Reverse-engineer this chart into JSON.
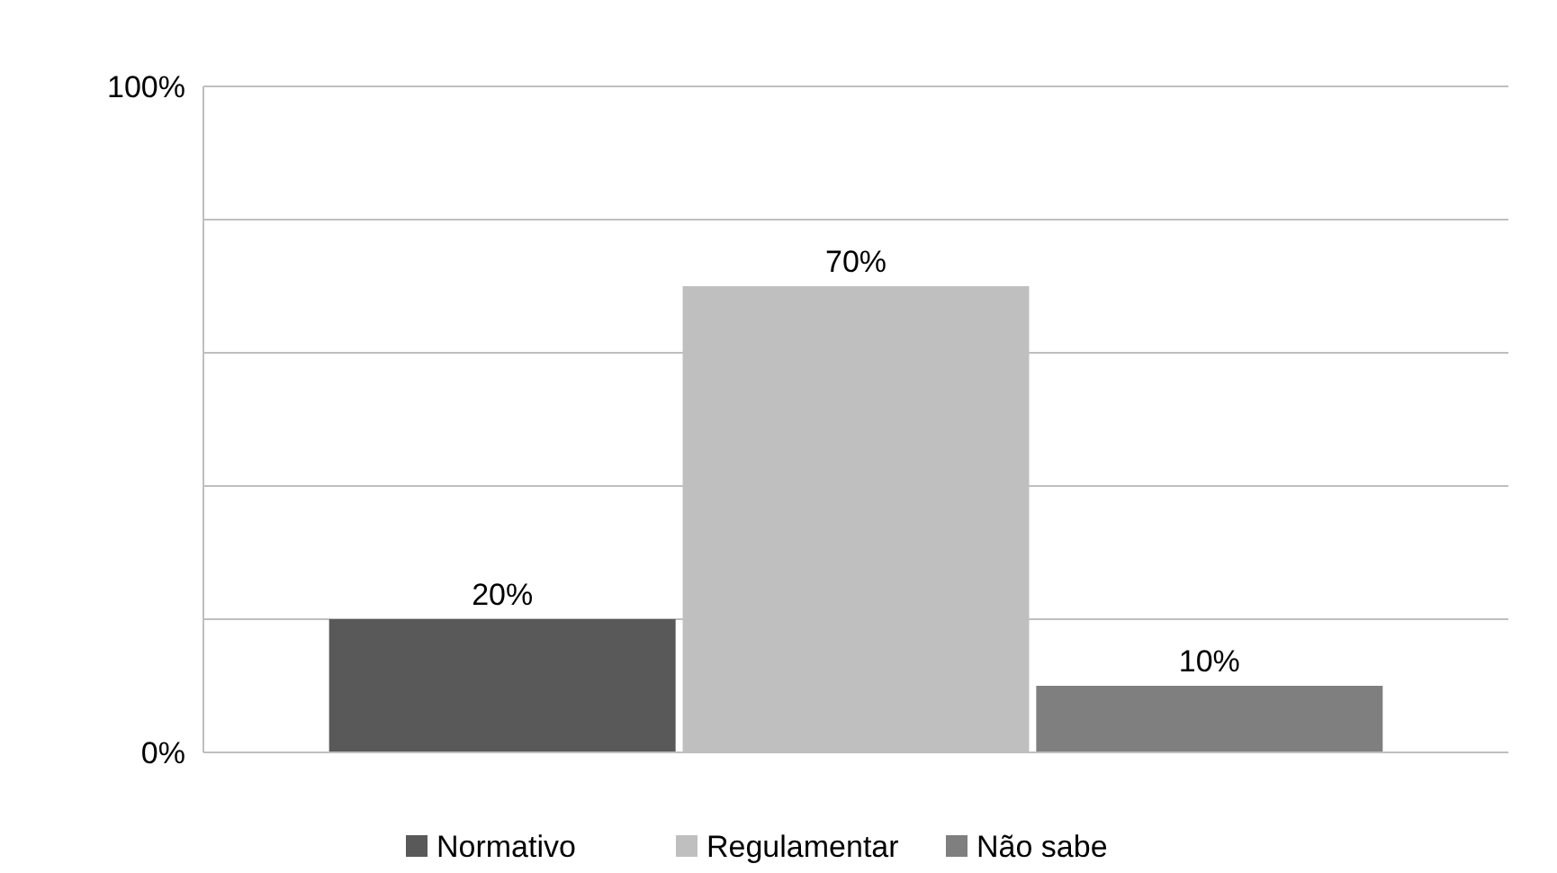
{
  "chart_data": {
    "type": "bar",
    "categories": [
      null
    ],
    "series": [
      {
        "name": "Normativo",
        "color": "#595959",
        "values": [
          20
        ],
        "value_labels": [
          "20%"
        ]
      },
      {
        "name": "Regulamentar",
        "color": "#bfbfbf",
        "values": [
          70
        ],
        "value_labels": [
          "70%"
        ]
      },
      {
        "name": "Não sabe",
        "color": "#7f7f7f",
        "values": [
          10
        ],
        "value_labels": [
          "10%"
        ]
      }
    ],
    "ylim": [
      0,
      100
    ],
    "yticks": [
      {
        "value": 0,
        "label": "0%"
      },
      {
        "value": 20,
        "label": null
      },
      {
        "value": 40,
        "label": null
      },
      {
        "value": 60,
        "label": null
      },
      {
        "value": 80,
        "label": null
      },
      {
        "value": 100,
        "label": "100%"
      }
    ],
    "grid": "y",
    "legend": "bottom"
  }
}
